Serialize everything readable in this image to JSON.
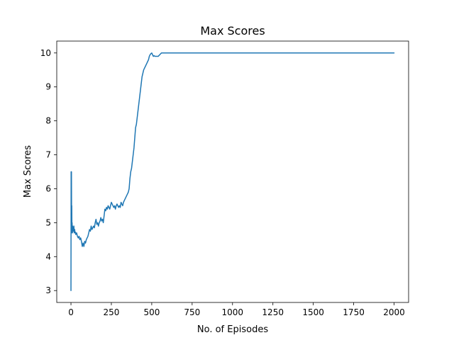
{
  "chart_data": {
    "type": "line",
    "title": "Max Scores",
    "xlabel": "No. of Episodes",
    "ylabel": "Max Scores",
    "xlim": [
      -88,
      2090
    ],
    "ylim": [
      2.65,
      10.35
    ],
    "xticks": [
      0,
      250,
      500,
      750,
      1000,
      1250,
      1500,
      1750,
      2000
    ],
    "yticks": [
      3,
      4,
      5,
      6,
      7,
      8,
      9,
      10
    ],
    "grid": false,
    "legend": "none",
    "line_color": "#1f77b4",
    "series": [
      {
        "x": [
          0,
          1,
          2,
          3,
          4,
          5,
          6,
          7,
          8,
          9,
          10,
          12,
          15,
          18,
          20,
          23,
          25,
          28,
          30,
          35,
          40,
          45,
          50,
          55,
          60,
          65,
          70,
          75,
          80,
          85,
          90,
          95,
          100,
          105,
          110,
          115,
          120,
          125,
          130,
          135,
          140,
          145,
          150,
          155,
          160,
          165,
          170,
          175,
          180,
          185,
          190,
          195,
          200,
          205,
          210,
          215,
          220,
          225,
          230,
          235,
          240,
          245,
          250,
          255,
          260,
          265,
          270,
          275,
          280,
          285,
          290,
          295,
          300,
          305,
          310,
          315,
          320,
          325,
          330,
          335,
          340,
          345,
          350,
          355,
          360,
          365,
          370,
          375,
          380,
          385,
          390,
          395,
          400,
          405,
          410,
          415,
          420,
          425,
          430,
          435,
          440,
          445,
          450,
          455,
          460,
          465,
          470,
          475,
          480,
          485,
          490,
          495,
          500,
          505,
          510,
          515,
          520,
          525,
          530,
          540,
          550,
          560,
          570,
          580,
          590,
          600,
          700,
          800,
          1000,
          1200,
          1400,
          1600,
          1800,
          2000
        ],
        "values": [
          3.0,
          6.5,
          5.1,
          6.5,
          4.8,
          5.5,
          4.7,
          5.0,
          4.8,
          4.7,
          4.9,
          4.8,
          4.75,
          4.9,
          4.7,
          4.8,
          4.7,
          4.72,
          4.65,
          4.7,
          4.6,
          4.55,
          4.6,
          4.5,
          4.55,
          4.45,
          4.3,
          4.4,
          4.3,
          4.45,
          4.4,
          4.5,
          4.55,
          4.6,
          4.7,
          4.8,
          4.75,
          4.9,
          4.8,
          4.85,
          4.9,
          4.85,
          5.0,
          5.1,
          4.95,
          5.0,
          4.9,
          5.0,
          5.05,
          5.15,
          5.05,
          5.1,
          5.0,
          5.2,
          5.4,
          5.35,
          5.45,
          5.4,
          5.5,
          5.45,
          5.4,
          5.5,
          5.6,
          5.55,
          5.5,
          5.45,
          5.5,
          5.4,
          5.5,
          5.55,
          5.5,
          5.45,
          5.5,
          5.45,
          5.6,
          5.55,
          5.5,
          5.6,
          5.65,
          5.7,
          5.75,
          5.8,
          5.85,
          5.9,
          6.0,
          6.3,
          6.5,
          6.6,
          6.8,
          7.0,
          7.2,
          7.5,
          7.8,
          7.9,
          8.1,
          8.3,
          8.5,
          8.7,
          8.9,
          9.1,
          9.3,
          9.4,
          9.5,
          9.55,
          9.6,
          9.65,
          9.7,
          9.75,
          9.8,
          9.9,
          9.95,
          9.98,
          10.0,
          9.95,
          9.9,
          9.92,
          9.9,
          9.9,
          9.9,
          9.9,
          9.95,
          10.0,
          10.0,
          10.0,
          10.0,
          10.0,
          10.0,
          10.0,
          10.0,
          10.0,
          10.0,
          10.0,
          10.0,
          10.0
        ]
      }
    ]
  }
}
